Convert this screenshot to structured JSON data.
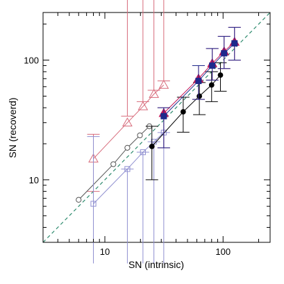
{
  "chart_data": {
    "type": "scatter",
    "title": "",
    "xlabel": "SN (intrinsic)",
    "ylabel": "SN (recoverd)",
    "xscale": "log",
    "yscale": "log",
    "xlim": [
      3,
      250
    ],
    "ylim": [
      3,
      250
    ],
    "grid": false,
    "legend": "none",
    "x_ticks": [
      {
        "value": 10,
        "label": "10"
      },
      {
        "value": 100,
        "label": "100"
      }
    ],
    "y_ticks": [
      {
        "value": 10,
        "label": "10"
      },
      {
        "value": 100,
        "label": "100"
      }
    ],
    "reference_line": {
      "style": "dashed",
      "color": "#2e8b6e",
      "from": [
        3,
        3
      ],
      "to": [
        250,
        250
      ]
    },
    "series": [
      {
        "marker": "triangle-open",
        "color": "#d76a7a",
        "x": [
          8,
          15.5,
          21,
          26,
          31.5
        ],
        "y": [
          15,
          30,
          41,
          52,
          62
        ],
        "yerr_low": [
          8,
          0,
          0,
          0,
          0
        ],
        "yerr_high": [
          24,
          34,
          45,
          56,
          67
        ]
      },
      {
        "marker": "circle-open",
        "color": "#555555",
        "x": [
          6,
          11.8,
          15.5,
          19.8,
          23.8
        ],
        "y": [
          6.8,
          13.5,
          18.5,
          23.5,
          28
        ],
        "yerr_low": [
          6.8,
          13.5,
          18.5,
          23.5,
          28
        ],
        "yerr_high": [
          6.8,
          13.5,
          18.5,
          23.5,
          28
        ]
      },
      {
        "marker": "square-open",
        "color": "#8f8fd0",
        "x": [
          8,
          15.5,
          21,
          26,
          31.5
        ],
        "y": [
          6.3,
          12.3,
          17,
          20.8,
          24.8
        ],
        "yerr_low": [
          2,
          2,
          2,
          2,
          2
        ],
        "yerr_high": [
          23,
          12.3,
          17,
          20.8,
          24.8
        ]
      },
      {
        "marker": "circle-filled",
        "color": "#000000",
        "x": [
          25,
          46,
          63,
          80,
          95
        ],
        "y": [
          19,
          37,
          50,
          62,
          75
        ],
        "yerr_low": [
          10,
          25,
          35,
          45,
          55
        ],
        "yerr_high": [
          28,
          49,
          65,
          80,
          95
        ]
      },
      {
        "marker": "triangle-filled",
        "color": "#c2185b",
        "x": [
          31.5,
          62,
          81,
          102,
          125
        ],
        "y": [
          36,
          70,
          94,
          118,
          142
        ],
        "yerr_low": [
          18.5,
          47,
          68,
          85,
          100
        ],
        "yerr_high": [
          40,
          90,
          125,
          158,
          188
        ]
      },
      {
        "marker": "square-filled",
        "color": "#1e2a8c",
        "x": [
          31.5,
          62,
          81,
          102,
          125
        ],
        "y": [
          34,
          67,
          90,
          114,
          138
        ],
        "yerr_low": [
          18.5,
          47,
          68,
          85,
          100
        ],
        "yerr_high": [
          40,
          90,
          125,
          158,
          188
        ]
      }
    ]
  }
}
